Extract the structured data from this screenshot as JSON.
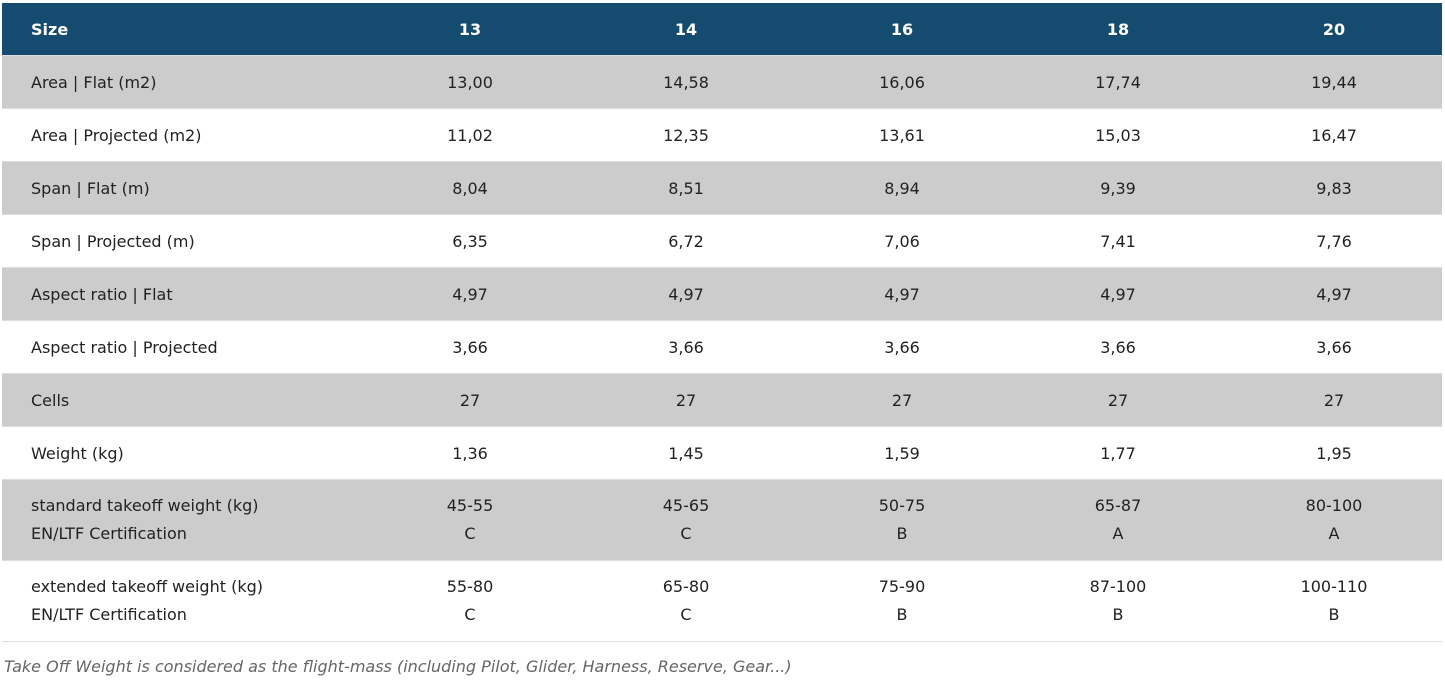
{
  "table": {
    "header": [
      "Size",
      "13",
      "14",
      "16",
      "18",
      "20"
    ],
    "rows": [
      [
        "Area | Flat (m2)",
        "13,00",
        "14,58",
        "16,06",
        "17,74",
        "19,44"
      ],
      [
        "Area | Projected (m2)",
        "11,02",
        "12,35",
        "13,61",
        "15,03",
        "16,47"
      ],
      [
        "Span | Flat (m)",
        "8,04",
        "8,51",
        "8,94",
        "9,39",
        "9,83"
      ],
      [
        "Span | Projected (m)",
        "6,35",
        "6,72",
        "7,06",
        "7,41",
        "7,76"
      ],
      [
        "Aspect ratio | Flat",
        "4,97",
        "4,97",
        "4,97",
        "4,97",
        "4,97"
      ],
      [
        "Aspect ratio | Projected",
        "3,66",
        "3,66",
        "3,66",
        "3,66",
        "3,66"
      ],
      [
        "Cells",
        "27",
        "27",
        "27",
        "27",
        "27"
      ],
      [
        "Weight (kg)",
        "1,36",
        "1,45",
        "1,59",
        "1,77",
        "1,95"
      ],
      [
        [
          "standard takeoff weight (kg)",
          "EN/LTF Certification"
        ],
        [
          "45-55",
          "C"
        ],
        [
          "45-65",
          "C"
        ],
        [
          "50-75",
          "B"
        ],
        [
          "65-87",
          "A"
        ],
        [
          "80-100",
          "A"
        ]
      ],
      [
        [
          "extended takeoff weight (kg)",
          "EN/LTF Certification"
        ],
        [
          "55-80",
          "C"
        ],
        [
          "65-80",
          "C"
        ],
        [
          "75-90",
          "B"
        ],
        [
          "87-100",
          "B"
        ],
        [
          "100-110",
          "B"
        ]
      ]
    ]
  },
  "footnote": "Take Off Weight is considered as the flight-mass (including Pilot, Glider, Harness, Reserve, Gear...)"
}
